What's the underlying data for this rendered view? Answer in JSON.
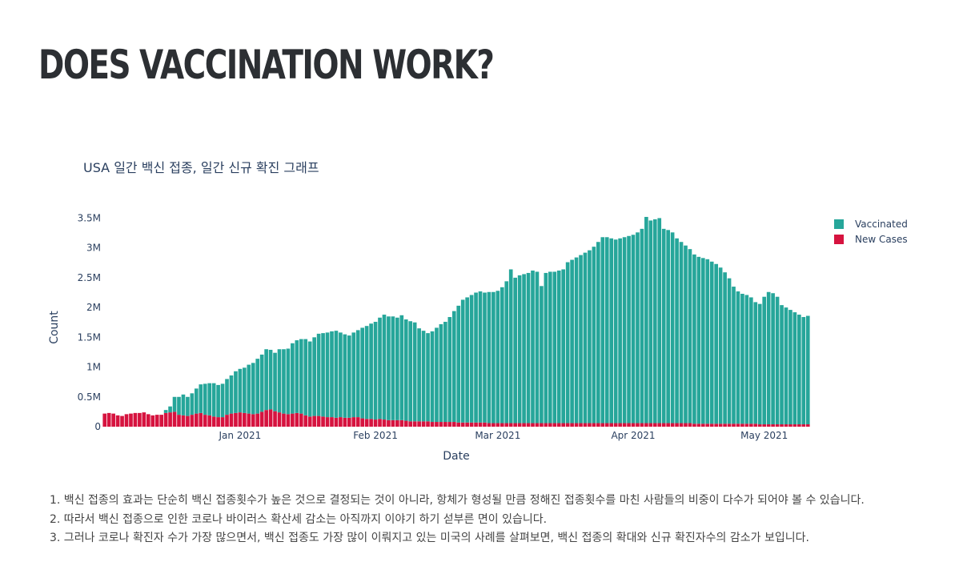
{
  "header": {
    "title": "DOES VACCINATION WORK?"
  },
  "notes": [
    "1. 백신 접종의 효과는 단순히 백신 접종횟수가 높은 것으로 결정되는 것이 아니라, 항체가 형성될 만큼 정해진 접종횟수를 마친 사람들의 비중이 다수가 되어야 볼 수 있습니다.",
    "2. 따라서 백신 접종으로 인한 코로나 바이러스 확산세 감소는 아직까지 이야기 하기 섣부른 면이 있습니다.",
    "3. 그러나 코로나 확진자 수가 가장 많으면서, 백신 접종도 가장 많이 이뤄지고 있는 미국의 사례를 살펴보면, 백신 접종의 확대와 신규 확진자수의 감소가 보입니다."
  ],
  "chart_data": {
    "type": "bar",
    "barmode": "stacked",
    "title": "USA 일간 백신 접종, 일간 신규 확진 그래프",
    "xlabel": "Date",
    "ylabel": "Count",
    "ylim": [
      0,
      3600000
    ],
    "y_ticks": [
      {
        "value": 0,
        "label": "0"
      },
      {
        "value": 500000,
        "label": "0.5M"
      },
      {
        "value": 1000000,
        "label": "1M"
      },
      {
        "value": 1500000,
        "label": "1.5M"
      },
      {
        "value": 2000000,
        "label": "2M"
      },
      {
        "value": 2500000,
        "label": "2.5M"
      },
      {
        "value": 3000000,
        "label": "3M"
      },
      {
        "value": 3500000,
        "label": "3.5M"
      }
    ],
    "x_ticks": [
      {
        "date": "2021-01-01",
        "label": "Jan 2021"
      },
      {
        "date": "2021-02-01",
        "label": "Feb 2021"
      },
      {
        "date": "2021-03-01",
        "label": "Mar 2021"
      },
      {
        "date": "2021-04-01",
        "label": "Apr 2021"
      },
      {
        "date": "2021-05-01",
        "label": "May 2021"
      }
    ],
    "start_date": "2020-12-01",
    "legend_position": "top-right",
    "grid": false,
    "series": [
      {
        "name": "Vaccinated",
        "color": "#26a69a",
        "values": [
          0,
          0,
          0,
          0,
          0,
          0,
          0,
          0,
          0,
          0,
          0,
          0,
          0,
          0,
          50000,
          100000,
          250000,
          300000,
          350000,
          320000,
          360000,
          420000,
          480000,
          520000,
          540000,
          560000,
          540000,
          560000,
          600000,
          640000,
          700000,
          730000,
          760000,
          820000,
          860000,
          920000,
          960000,
          1020000,
          1000000,
          980000,
          1060000,
          1080000,
          1100000,
          1180000,
          1220000,
          1250000,
          1280000,
          1260000,
          1320000,
          1380000,
          1400000,
          1420000,
          1440000,
          1460000,
          1420000,
          1400000,
          1380000,
          1420000,
          1460000,
          1520000,
          1560000,
          1600000,
          1640000,
          1700000,
          1760000,
          1740000,
          1740000,
          1720000,
          1760000,
          1700000,
          1680000,
          1660000,
          1560000,
          1520000,
          1480000,
          1520000,
          1580000,
          1640000,
          1680000,
          1760000,
          1860000,
          1960000,
          2060000,
          2100000,
          2140000,
          2180000,
          2200000,
          2180000,
          2200000,
          2200000,
          2220000,
          2280000,
          2380000,
          2580000,
          2440000,
          2480000,
          2500000,
          2520000,
          2560000,
          2540000,
          2300000,
          2520000,
          2540000,
          2540000,
          2560000,
          2580000,
          2700000,
          2740000,
          2780000,
          2820000,
          2860000,
          2900000,
          2960000,
          3040000,
          3120000,
          3120000,
          3100000,
          3080000,
          3100000,
          3120000,
          3140000,
          3160000,
          3200000,
          3260000,
          3460000,
          3400000,
          3420000,
          3440000,
          3260000,
          3240000,
          3200000,
          3100000,
          3040000,
          2980000,
          2920000,
          2840000,
          2800000,
          2780000,
          2760000,
          2720000,
          2680000,
          2620000,
          2540000,
          2440000,
          2300000,
          2220000,
          2180000,
          2160000,
          2120000,
          2040000,
          2020000,
          2140000,
          2220000,
          2200000,
          2140000,
          2000000,
          1960000,
          1920000,
          1880000,
          1840000,
          1800000,
          1820000
        ]
      },
      {
        "name": "New Cases",
        "color": "#d6133f",
        "values": [
          220000,
          230000,
          220000,
          190000,
          180000,
          210000,
          220000,
          230000,
          230000,
          240000,
          210000,
          190000,
          200000,
          200000,
          230000,
          240000,
          250000,
          200000,
          190000,
          180000,
          200000,
          220000,
          230000,
          200000,
          190000,
          170000,
          160000,
          160000,
          200000,
          220000,
          230000,
          240000,
          230000,
          220000,
          210000,
          220000,
          250000,
          280000,
          290000,
          260000,
          240000,
          220000,
          210000,
          220000,
          230000,
          220000,
          190000,
          170000,
          180000,
          180000,
          170000,
          160000,
          160000,
          150000,
          160000,
          150000,
          150000,
          160000,
          160000,
          140000,
          130000,
          130000,
          120000,
          130000,
          120000,
          110000,
          110000,
          110000,
          110000,
          100000,
          90000,
          90000,
          90000,
          90000,
          90000,
          80000,
          80000,
          80000,
          80000,
          80000,
          80000,
          70000,
          70000,
          70000,
          70000,
          70000,
          70000,
          70000,
          60000,
          60000,
          60000,
          60000,
          60000,
          60000,
          60000,
          60000,
          60000,
          60000,
          60000,
          60000,
          60000,
          60000,
          60000,
          60000,
          60000,
          60000,
          60000,
          60000,
          60000,
          60000,
          60000,
          60000,
          60000,
          60000,
          60000,
          60000,
          60000,
          60000,
          60000,
          60000,
          60000,
          60000,
          60000,
          60000,
          60000,
          60000,
          60000,
          60000,
          60000,
          60000,
          60000,
          60000,
          60000,
          60000,
          60000,
          50000,
          50000,
          50000,
          50000,
          50000,
          50000,
          50000,
          50000,
          50000,
          50000,
          50000,
          50000,
          50000,
          50000,
          50000,
          40000,
          40000,
          40000,
          40000,
          40000,
          40000,
          40000,
          40000,
          40000,
          40000,
          40000,
          40000,
          40000,
          40000,
          40000,
          40000,
          40000,
          40000,
          40000,
          40000
        ]
      }
    ]
  }
}
